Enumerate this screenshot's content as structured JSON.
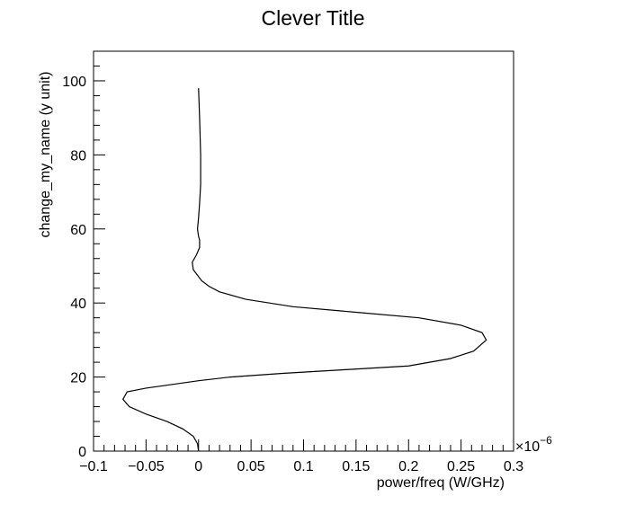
{
  "chart_data": {
    "type": "line",
    "title": "Clever Title",
    "xlabel": "power/freq (W/GHz)",
    "ylabel": "change_my_name (y unit)",
    "x_exponent_label": "×10",
    "x_exponent_power": "−6",
    "xlim": [
      -0.1,
      0.3
    ],
    "ylim": [
      0,
      108
    ],
    "grid": false,
    "x_ticks": [
      {
        "value": -0.1,
        "label": "−0.1"
      },
      {
        "value": -0.05,
        "label": "−0.05"
      },
      {
        "value": 0,
        "label": "0"
      },
      {
        "value": 0.05,
        "label": "0.05"
      },
      {
        "value": 0.1,
        "label": "0.1"
      },
      {
        "value": 0.15,
        "label": "0.15"
      },
      {
        "value": 0.2,
        "label": "0.2"
      },
      {
        "value": 0.25,
        "label": "0.25"
      },
      {
        "value": 0.3,
        "label": "0.3"
      }
    ],
    "y_ticks": [
      {
        "value": 0,
        "label": "0"
      },
      {
        "value": 20,
        "label": "20"
      },
      {
        "value": 40,
        "label": "40"
      },
      {
        "value": 60,
        "label": "60"
      },
      {
        "value": 80,
        "label": "80"
      },
      {
        "value": 100,
        "label": "100"
      }
    ],
    "series": [
      {
        "x": [
          0.0,
          -0.001,
          -0.005,
          -0.015,
          -0.03,
          -0.05,
          -0.066,
          -0.072,
          -0.068,
          -0.05,
          -0.025,
          0.0,
          0.03,
          0.08,
          0.14,
          0.2,
          0.24,
          0.262,
          0.274,
          0.27,
          0.25,
          0.21,
          0.15,
          0.09,
          0.045,
          0.02,
          0.01,
          0.003,
          -0.005,
          -0.006,
          -0.002,
          0.001,
          0.001,
          0.0,
          -0.001,
          0.0,
          0.001,
          0.002,
          0.002,
          0.001,
          0.0
        ],
        "y": [
          0,
          2,
          4,
          6,
          8,
          10,
          12,
          14,
          16,
          17,
          18,
          19,
          20,
          21,
          22,
          23,
          25,
          27,
          30,
          32,
          34,
          36,
          37.5,
          39,
          41,
          43,
          44.5,
          46,
          49,
          51,
          53,
          55,
          57,
          58,
          60,
          63,
          67,
          72,
          80,
          90,
          98
        ]
      }
    ]
  }
}
